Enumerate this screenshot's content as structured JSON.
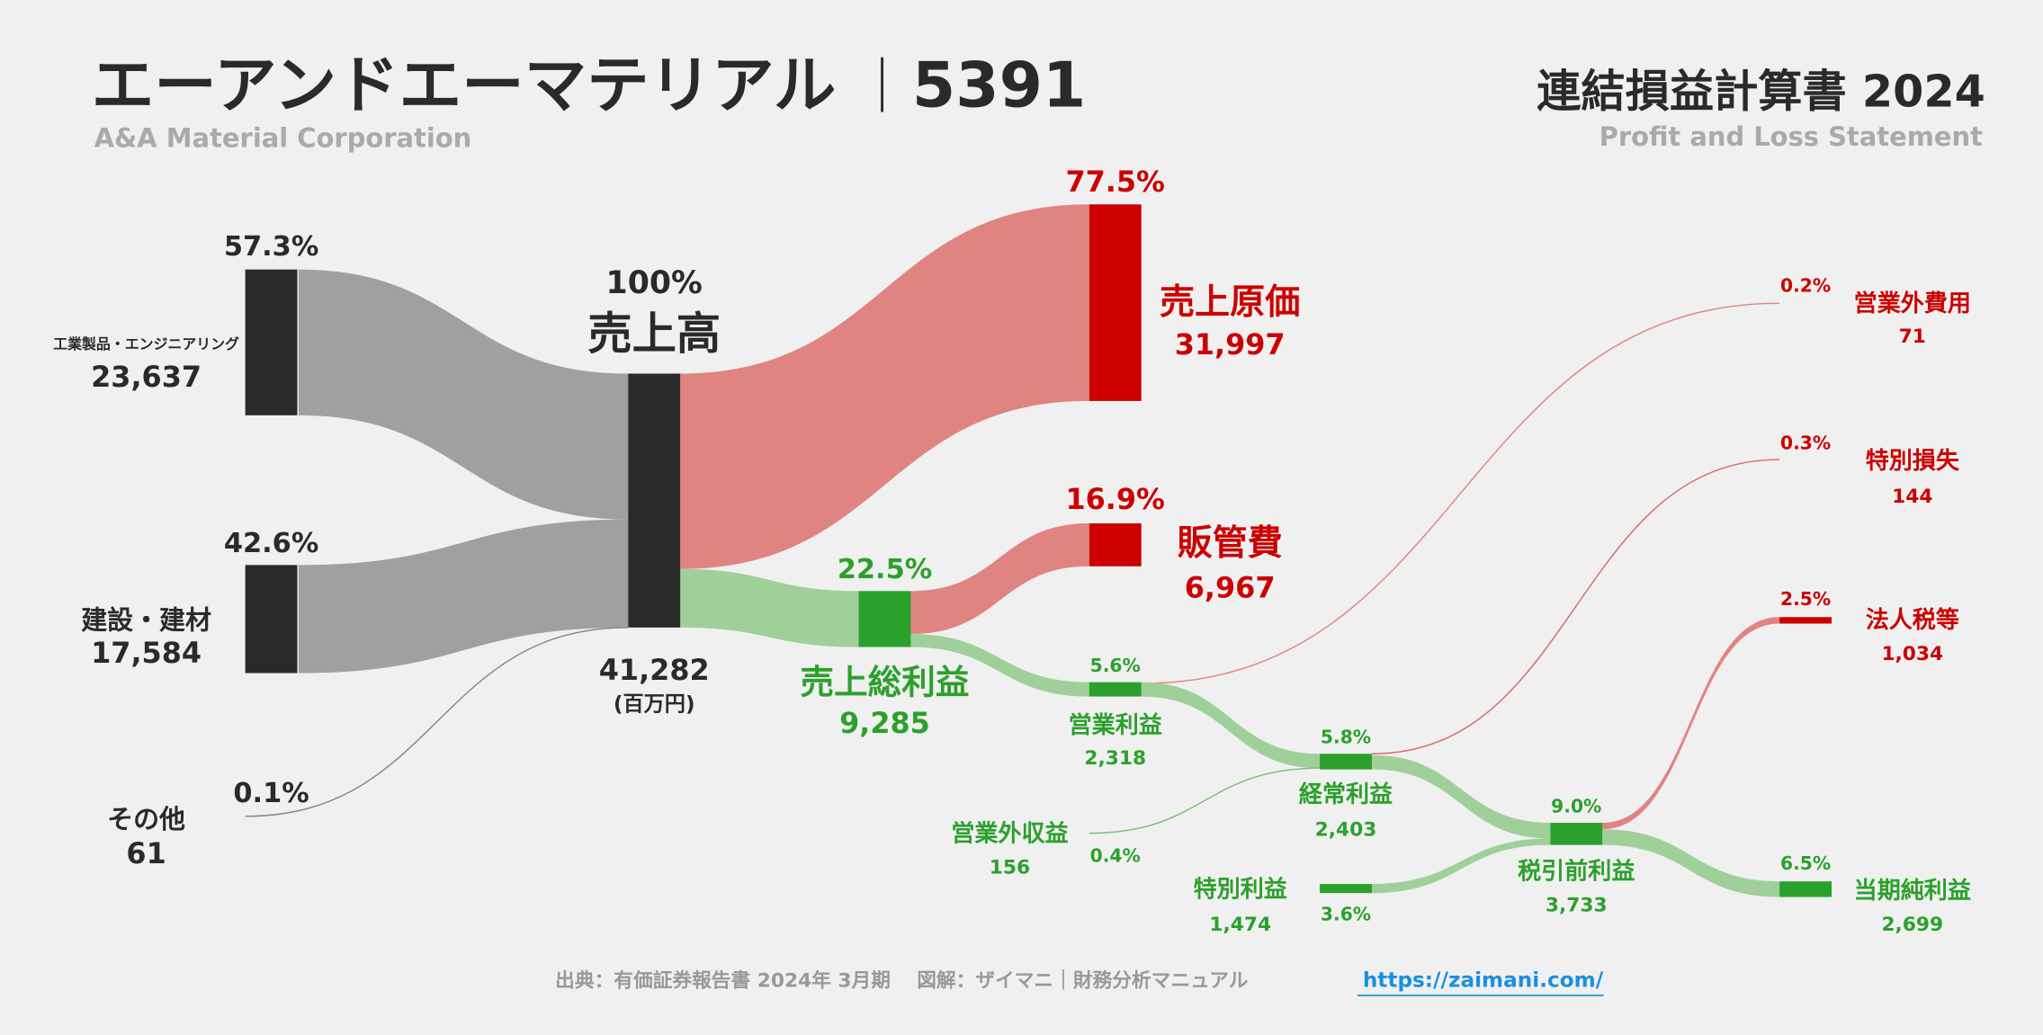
{
  "header": {
    "company": "エーアンドエーマテリアル",
    "code": "5391",
    "company_en": "A&A Material Corporation",
    "statement": "連結損益計算書 2024",
    "statement_en": "Profit and Loss Statement"
  },
  "colors": {
    "dark": "#2a2a2a",
    "gray_flow": "#a0a0a0",
    "red": "#cc0000",
    "red_flow": "#e08482",
    "green": "#2ca02c",
    "green_flow": "#9fd09a",
    "link": "#1a8fe0"
  },
  "chart_data": {
    "type": "sankey",
    "unit": "(百万円)",
    "nodes": {
      "seg1": {
        "label": "工業製品・エンジニアリング",
        "value": "23,637",
        "pct": "57.3%"
      },
      "seg2": {
        "label": "建設・建材",
        "value": "17,584",
        "pct": "42.6%"
      },
      "other": {
        "label": "その他",
        "value": "61",
        "pct": "0.1%"
      },
      "revenue": {
        "label": "売上高",
        "value": "41,282",
        "pct": "100%"
      },
      "cogs": {
        "label": "売上原価",
        "value": "31,997",
        "pct": "77.5%"
      },
      "gross": {
        "label": "売上総利益",
        "value": "9,285",
        "pct": "22.5%"
      },
      "sga": {
        "label": "販管費",
        "value": "6,967",
        "pct": "16.9%"
      },
      "op": {
        "label": "営業利益",
        "value": "2,318",
        "pct": "5.6%"
      },
      "nonop_inc": {
        "label": "営業外収益",
        "value": "156",
        "pct": "0.4%"
      },
      "nonop_exp": {
        "label": "営業外費用",
        "value": "71",
        "pct": "0.2%"
      },
      "ordinary": {
        "label": "経常利益",
        "value": "2,403",
        "pct": "5.8%"
      },
      "special_gain": {
        "label": "特別利益",
        "value": "1,474",
        "pct": "3.6%"
      },
      "special_loss": {
        "label": "特別損失",
        "value": "144",
        "pct": "0.3%"
      },
      "pretax": {
        "label": "税引前利益",
        "value": "3,733",
        "pct": "9.0%"
      },
      "tax": {
        "label": "法人税等",
        "value": "1,034",
        "pct": "2.5%"
      },
      "net": {
        "label": "当期純利益",
        "value": "2,699",
        "pct": "6.5%"
      }
    }
  },
  "footer": {
    "source": "出典：有価証券報告書 2024年 3月期　 図解：ザイマニ｜財務分析マニュアル",
    "url": "https://zaimani.com/"
  }
}
